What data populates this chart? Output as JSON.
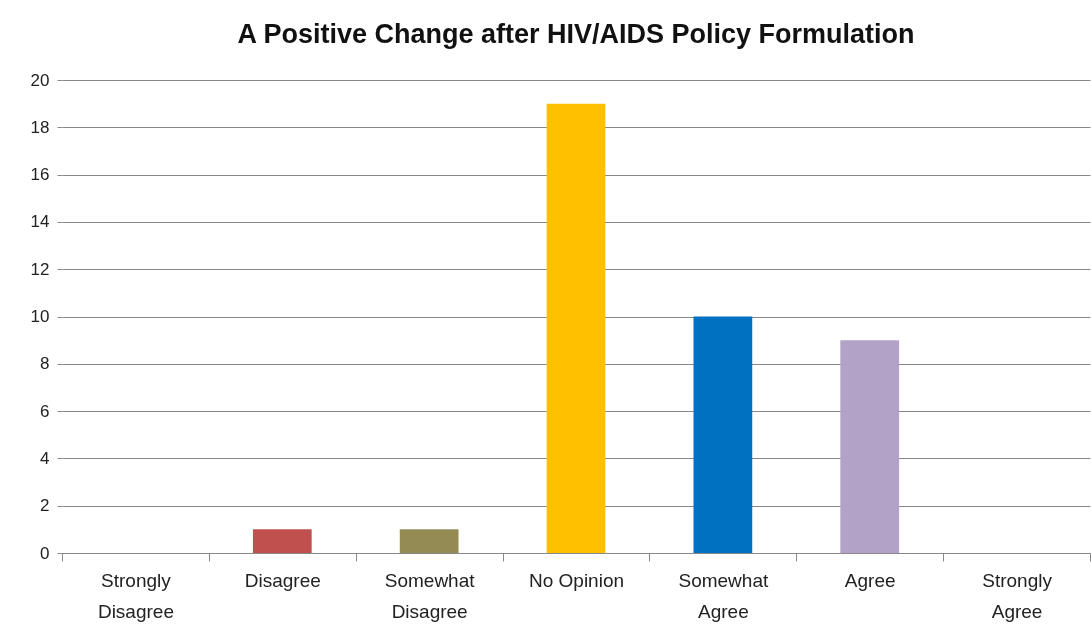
{
  "chart_data": {
    "type": "bar",
    "title": "A Positive Change after HIV/AIDS Policy Formulation",
    "categories": [
      "Strongly Disagree",
      "Disagree",
      "Somewhat Disagree",
      "No Opinion",
      "Somewhat Agree",
      "Agree",
      "Strongly Agree"
    ],
    "values": [
      0,
      1,
      1,
      19,
      10,
      9,
      0
    ],
    "colors": [
      null,
      "#c0504d",
      "#948a54",
      "#ffc000",
      "#0070c0",
      "#b3a2c7",
      null
    ],
    "ylim": [
      0,
      20
    ],
    "yticks": [
      0,
      2,
      4,
      6,
      8,
      10,
      12,
      14,
      16,
      18,
      20
    ],
    "grid": "y"
  }
}
